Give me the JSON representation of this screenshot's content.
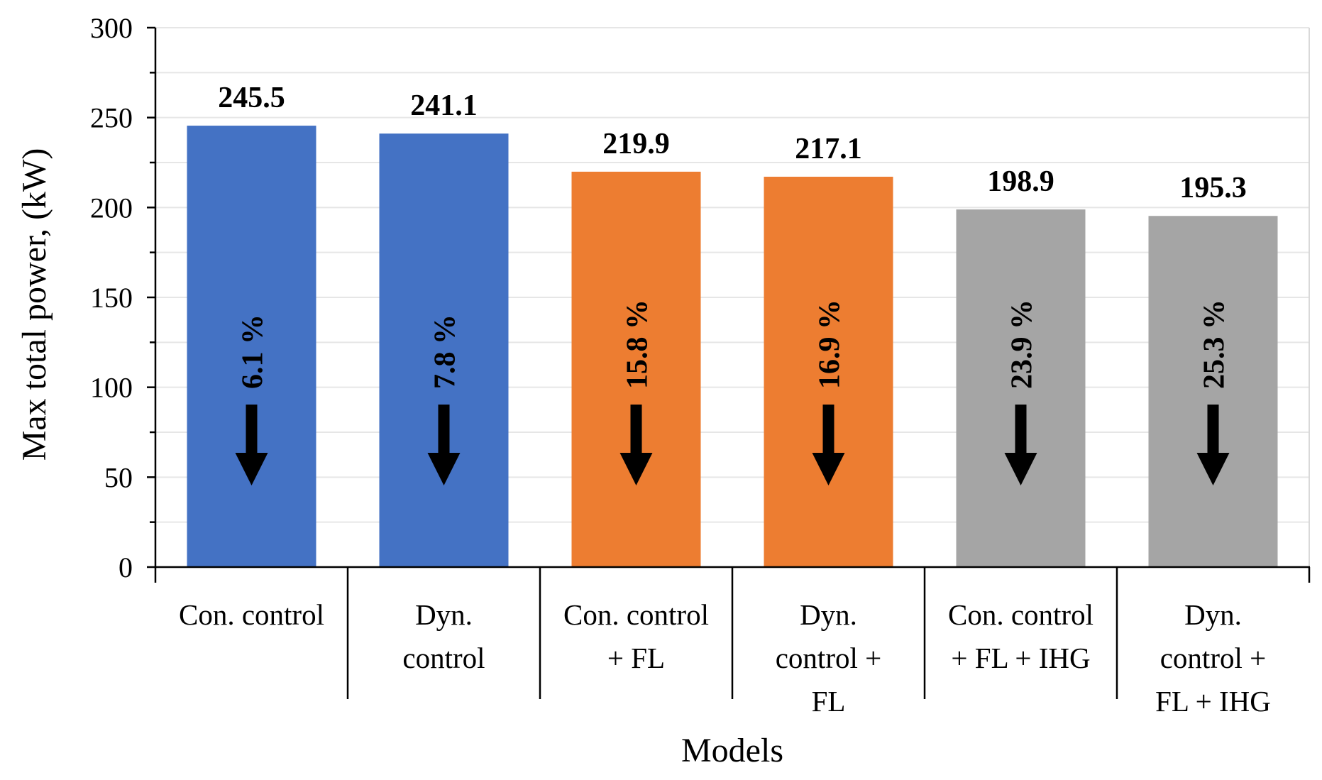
{
  "chart_data": {
    "type": "bar",
    "title": "",
    "xlabel": "Models",
    "ylabel": "Max total power, (kW)",
    "ylim": [
      0,
      300
    ],
    "yticks": [
      0,
      50,
      100,
      150,
      200,
      250,
      300
    ],
    "grid": true,
    "categories": [
      [
        "Con. control"
      ],
      [
        "Dyn.",
        "control"
      ],
      [
        "Con. control",
        "+ FL"
      ],
      [
        "Dyn.",
        "control +",
        "FL"
      ],
      [
        "Con. control",
        "+ FL + IHG"
      ],
      [
        "Dyn.",
        "control +",
        "FL + IHG"
      ]
    ],
    "values": [
      245.5,
      241.1,
      219.9,
      217.1,
      198.9,
      195.3
    ],
    "value_labels": [
      "245.5",
      "241.1",
      "219.9",
      "217.1",
      "198.9",
      "195.3"
    ],
    "reduction_labels": [
      "6.1 %",
      "7.8 %",
      "15.8 %",
      "16.9 %",
      "23.9 %",
      "25.3 %"
    ],
    "colors": [
      "#4472C4",
      "#4472C4",
      "#ED7D31",
      "#ED7D31",
      "#A5A5A5",
      "#A5A5A5"
    ],
    "gridline_color": "#e6e6e6",
    "axis_color": "#000000"
  }
}
